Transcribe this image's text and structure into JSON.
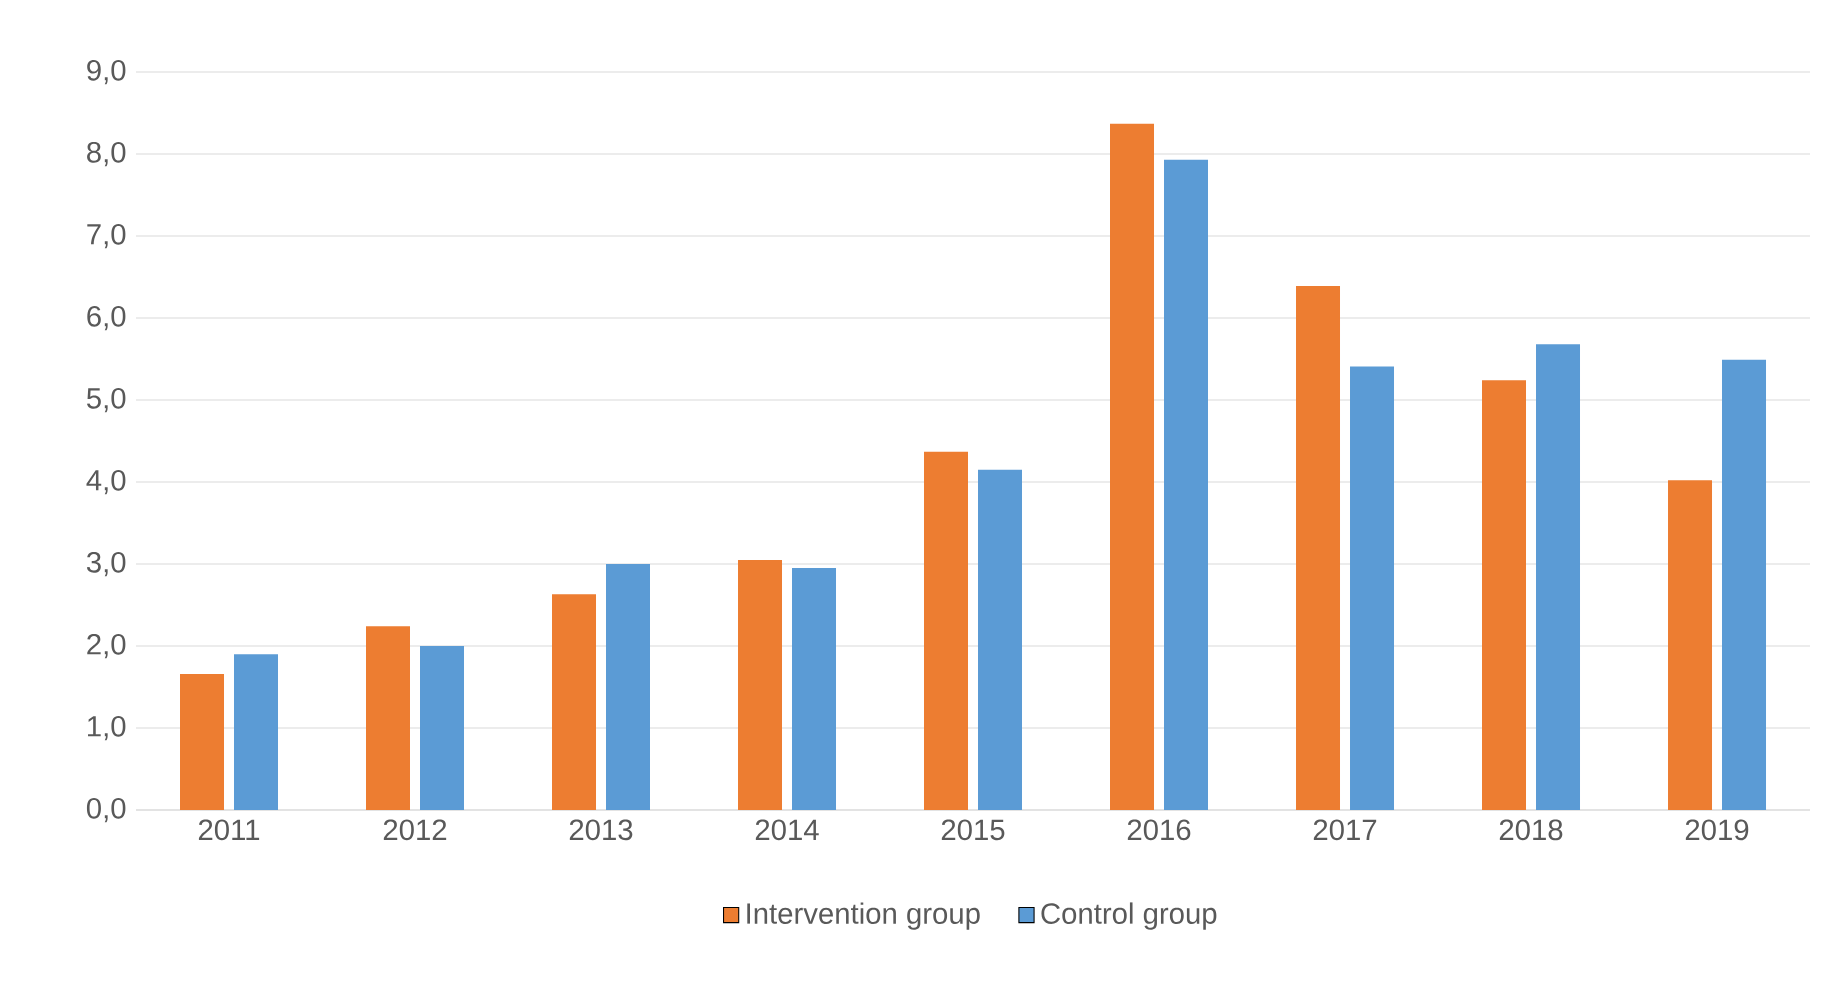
{
  "chart_data": {
    "type": "bar",
    "categories": [
      "2011",
      "2012",
      "2013",
      "2014",
      "2015",
      "2016",
      "2017",
      "2018",
      "2019"
    ],
    "series": [
      {
        "name": "Intervention group",
        "color": "#ed7d31",
        "values": [
          1.66,
          2.24,
          2.63,
          3.05,
          4.37,
          8.37,
          6.39,
          5.24,
          4.02
        ]
      },
      {
        "name": "Control group",
        "color": "#5b9bd5",
        "values": [
          1.9,
          2.0,
          3.0,
          2.95,
          4.15,
          7.93,
          5.41,
          5.68,
          5.49
        ]
      }
    ],
    "ylim": [
      0,
      9
    ],
    "yticks": [
      {
        "value": 0,
        "label": "0,0"
      },
      {
        "value": 1,
        "label": "1,0"
      },
      {
        "value": 2,
        "label": "2,0"
      },
      {
        "value": 3,
        "label": "3,0"
      },
      {
        "value": 4,
        "label": "4,0"
      },
      {
        "value": 5,
        "label": "5,0"
      },
      {
        "value": 6,
        "label": "6,0"
      },
      {
        "value": 7,
        "label": "7,0"
      },
      {
        "value": 8,
        "label": "8,0"
      },
      {
        "value": 9,
        "label": "9,0"
      }
    ],
    "grid": "y",
    "legend": "bottom"
  }
}
